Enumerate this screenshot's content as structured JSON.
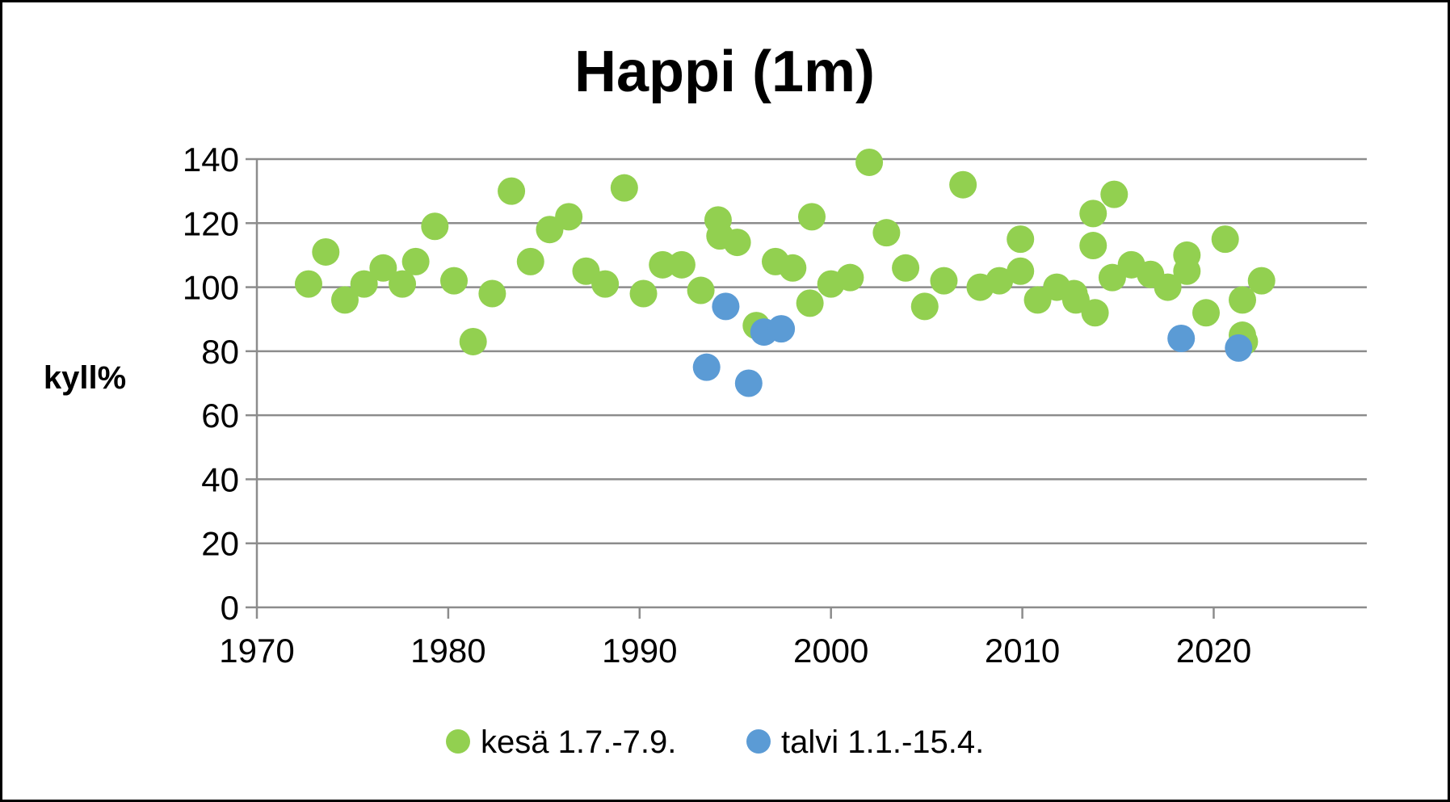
{
  "chart_data": {
    "type": "scatter",
    "title": "Happi (1m)",
    "ylabel": "kyll%",
    "xlabel": "",
    "xlim": [
      1970,
      2028
    ],
    "ylim": [
      0,
      140
    ],
    "x_ticks": [
      1970,
      1980,
      1990,
      2000,
      2010,
      2020
    ],
    "y_ticks": [
      0,
      20,
      40,
      60,
      80,
      100,
      120,
      140
    ],
    "grid": "horizontal",
    "legend_position": "bottom",
    "series": [
      {
        "name": "kesä 1.7.-7.9.",
        "color": "#92d050",
        "points": [
          [
            1972.7,
            101
          ],
          [
            1973.6,
            111
          ],
          [
            1974.6,
            96
          ],
          [
            1975.6,
            101
          ],
          [
            1976.6,
            106
          ],
          [
            1977.6,
            101
          ],
          [
            1978.3,
            108
          ],
          [
            1979.3,
            119
          ],
          [
            1980.3,
            102
          ],
          [
            1981.3,
            83
          ],
          [
            1982.3,
            98
          ],
          [
            1983.3,
            130
          ],
          [
            1984.3,
            108
          ],
          [
            1985.3,
            118
          ],
          [
            1986.3,
            122
          ],
          [
            1987.2,
            105
          ],
          [
            1988.2,
            101
          ],
          [
            1989.2,
            131
          ],
          [
            1990.2,
            98
          ],
          [
            1991.2,
            107
          ],
          [
            1992.2,
            107
          ],
          [
            1993.2,
            99
          ],
          [
            1994.1,
            121
          ],
          [
            1994.2,
            116
          ],
          [
            1995.1,
            114
          ],
          [
            1996.1,
            88
          ],
          [
            1997.1,
            108
          ],
          [
            1998.0,
            106
          ],
          [
            1998.9,
            95
          ],
          [
            1999.0,
            122
          ],
          [
            2000.0,
            101
          ],
          [
            2001.0,
            103
          ],
          [
            2002.0,
            139
          ],
          [
            2002.9,
            117
          ],
          [
            2003.9,
            106
          ],
          [
            2004.9,
            94
          ],
          [
            2005.9,
            102
          ],
          [
            2006.9,
            132
          ],
          [
            2007.8,
            100
          ],
          [
            2008.8,
            102
          ],
          [
            2009.9,
            115
          ],
          [
            2009.9,
            105
          ],
          [
            2010.8,
            96
          ],
          [
            2011.8,
            100
          ],
          [
            2012.7,
            98
          ],
          [
            2012.8,
            96
          ],
          [
            2013.7,
            123
          ],
          [
            2013.7,
            113
          ],
          [
            2013.8,
            92
          ],
          [
            2014.8,
            129
          ],
          [
            2014.7,
            103
          ],
          [
            2015.7,
            107
          ],
          [
            2016.7,
            104
          ],
          [
            2017.6,
            100
          ],
          [
            2018.6,
            110
          ],
          [
            2018.6,
            105
          ],
          [
            2019.6,
            92
          ],
          [
            2020.6,
            115
          ],
          [
            2021.5,
            96
          ],
          [
            2021.5,
            85
          ],
          [
            2021.6,
            83
          ],
          [
            2022.5,
            102
          ]
        ]
      },
      {
        "name": "talvi 1.1.-15.4.",
        "color": "#5b9bd5",
        "points": [
          [
            1993.5,
            75
          ],
          [
            1994.5,
            94
          ],
          [
            1995.7,
            70
          ],
          [
            1996.5,
            86
          ],
          [
            1997.4,
            87
          ],
          [
            2018.3,
            84
          ],
          [
            2021.3,
            81
          ]
        ]
      }
    ]
  }
}
